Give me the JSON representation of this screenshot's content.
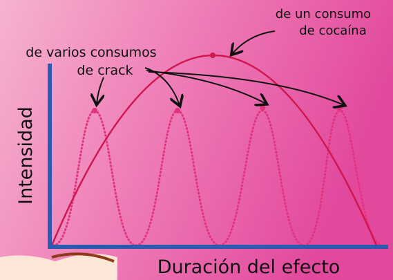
{
  "annotations": {
    "cocaine": [
      "de un consumo",
      "de cocaína"
    ],
    "crack": [
      "de varios consumos",
      "de crack"
    ]
  },
  "axes": {
    "y_label": "Intensidad",
    "x_label": "Duración del efecto"
  }
}
